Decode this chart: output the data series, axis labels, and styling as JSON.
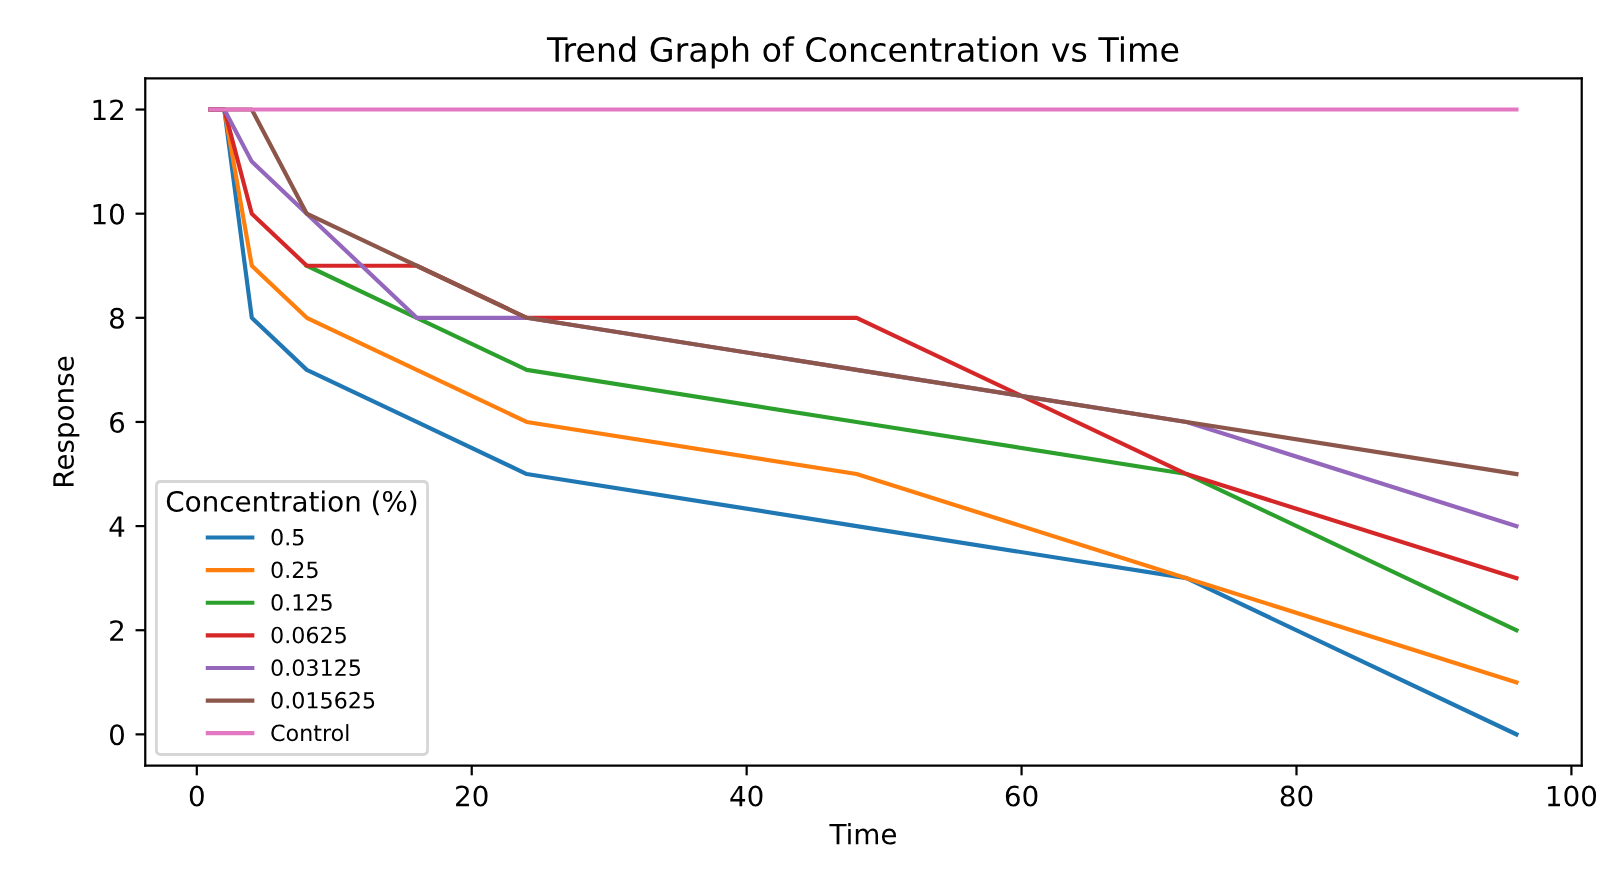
{
  "chart_data": {
    "type": "line",
    "title": "Trend Graph of Concentration vs Time",
    "xlabel": "Time",
    "ylabel": "Response",
    "legend_title": "Concentration (%)",
    "legend": "bottom left",
    "grid": false,
    "x": [
      1,
      2,
      4,
      8,
      16,
      24,
      48,
      72,
      96
    ],
    "xlim": [
      -3.75,
      100.75
    ],
    "xticks": [
      0,
      20,
      40,
      60,
      80,
      100
    ],
    "ylim": [
      -0.6,
      12.6
    ],
    "yticks": [
      0,
      2,
      4,
      6,
      8,
      10,
      12
    ],
    "series": [
      {
        "name": "0.5",
        "color": "#1f77b4",
        "values": [
          12,
          12,
          8,
          7,
          6,
          5,
          4,
          3,
          0
        ]
      },
      {
        "name": "0.25",
        "color": "#ff7f0e",
        "values": [
          12,
          12,
          9,
          8,
          7,
          6,
          5,
          3,
          1
        ]
      },
      {
        "name": "0.125",
        "color": "#2ca02c",
        "values": [
          null,
          null,
          null,
          9,
          8,
          7,
          6,
          5,
          2
        ]
      },
      {
        "name": "0.0625",
        "color": "#d62728",
        "values": [
          12,
          12,
          10,
          9,
          9,
          8,
          8,
          5,
          3
        ]
      },
      {
        "name": "0.03125",
        "color": "#9467bd",
        "values": [
          12,
          12,
          11,
          10,
          8,
          8,
          7,
          6,
          4
        ]
      },
      {
        "name": "0.015625",
        "color": "#8c564b",
        "values": [
          12,
          12,
          12,
          10,
          9,
          8,
          7,
          6,
          5
        ]
      },
      {
        "name": "Control",
        "color": "#e377c2",
        "values": [
          12,
          12,
          12,
          12,
          12,
          12,
          12,
          12,
          12
        ]
      }
    ]
  }
}
